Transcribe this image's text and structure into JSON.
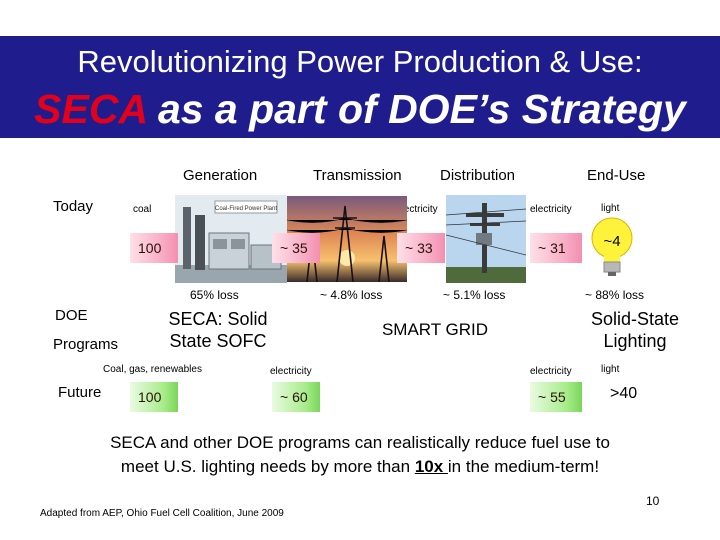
{
  "header": {
    "title_line1": "Revolutionizing Power Production & Use:",
    "title_seca": "SECA",
    "title_rest": " as a part of DOE’s Strategy"
  },
  "columns": {
    "generation": "Generation",
    "transmission": "Transmission",
    "distribution": "Distribution",
    "end_use": "End-Use"
  },
  "rows": {
    "today": "Today",
    "doe": "DOE",
    "programs": "Programs",
    "future": "Future"
  },
  "today": {
    "coal": "coal",
    "electricity1": "electricity",
    "electricity2": "electricity",
    "electricity3": "electricity",
    "light": "light",
    "v100": "100",
    "v35": "~ 35",
    "v33": "~ 33",
    "v31": "~ 31",
    "v4": "~4",
    "loss_gen": "65% loss",
    "loss_trans": "~ 4.8% loss",
    "loss_dist": "~ 5.1% loss",
    "loss_end": "~ 88% loss"
  },
  "programs": {
    "seca": "SECA: Solid State SOFC",
    "smart_grid": "SMART GRID",
    "ssl": "Solid-State Lighting"
  },
  "future": {
    "fuels": "Coal, gas, renewables",
    "electricity1": "electricity",
    "electricity2": "electricity",
    "light": "light",
    "v100": "100",
    "v60": "~ 60",
    "v55": "~ 55",
    "v40": ">40"
  },
  "bottom": {
    "line1": "SECA and other DOE programs can realistically reduce fuel use to",
    "line2_pre": "meet U.S. lighting needs by more than ",
    "line2_hl": "10x ",
    "line2_post": "in the medium-term!"
  },
  "footer": {
    "source": "Adapted from AEP, Ohio Fuel Cell Coalition, June 2009",
    "page": "10"
  },
  "photo_labels": {
    "plant_sign": "Coal-Fired Power Plant"
  },
  "colors": {
    "header_bg": "#1f1d8e",
    "seca_red": "#e3001b",
    "pink_arrow": "#f38fb0",
    "green_arrow": "#7ad65a",
    "bulb_yellow": "#ffee33"
  }
}
